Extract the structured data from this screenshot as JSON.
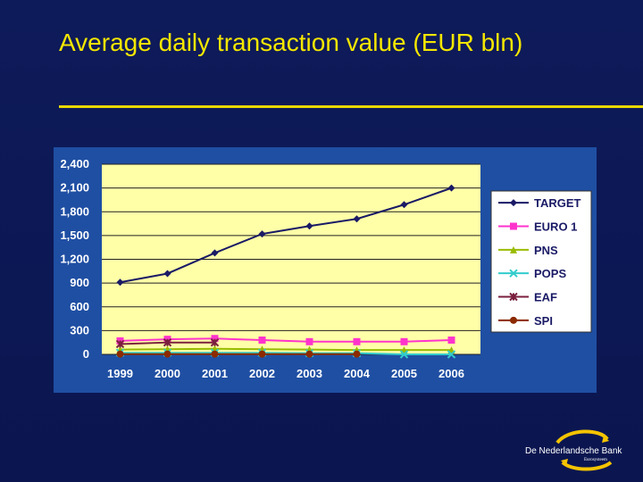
{
  "slide": {
    "title": "Average daily transaction value (EUR bln)"
  },
  "colors": {
    "background": "#0d1a55",
    "title": "#f5e600",
    "panel": "#1f4fa3",
    "plot_area": "#ffffa8",
    "axis_text": "#ffffff"
  },
  "chart_data": {
    "type": "line",
    "title": "",
    "xlabel": "",
    "ylabel": "",
    "categories": [
      "1999",
      "2000",
      "2001",
      "2002",
      "2003",
      "2004",
      "2005",
      "2006"
    ],
    "ylim": [
      0,
      2400
    ],
    "yticks": [
      0,
      300,
      600,
      900,
      1200,
      1500,
      1800,
      2100,
      2400
    ],
    "ytick_labels": [
      "0",
      "300",
      "600",
      "900",
      "1,200",
      "1,500",
      "1,800",
      "2,100",
      "2,400"
    ],
    "grid": true,
    "legend_position": "right",
    "series": [
      {
        "name": "TARGET",
        "color": "#1a1a66",
        "marker": "diamond",
        "values": [
          910,
          1020,
          1280,
          1520,
          1620,
          1710,
          1890,
          2100
        ]
      },
      {
        "name": "EURO 1",
        "color": "#ff33cc",
        "marker": "square",
        "values": [
          170,
          190,
          200,
          180,
          160,
          160,
          160,
          180
        ]
      },
      {
        "name": "PNS",
        "color": "#99bb00",
        "marker": "triangle",
        "values": [
          60,
          65,
          70,
          65,
          60,
          55,
          55,
          55
        ]
      },
      {
        "name": "POPS",
        "color": "#33cccc",
        "marker": "x",
        "values": [
          20,
          20,
          20,
          20,
          15,
          15,
          0,
          0
        ]
      },
      {
        "name": "EAF",
        "color": "#7a1f3d",
        "marker": "star",
        "values": [
          130,
          150,
          150,
          null,
          null,
          null,
          null,
          null
        ]
      },
      {
        "name": "SPI",
        "color": "#8b2a00",
        "marker": "circle",
        "values": [
          3,
          3,
          3,
          3,
          3,
          3,
          null,
          null
        ]
      }
    ]
  },
  "logo": {
    "name": "De Nederlandsche Bank",
    "subtitle": "Eurosysteem"
  }
}
